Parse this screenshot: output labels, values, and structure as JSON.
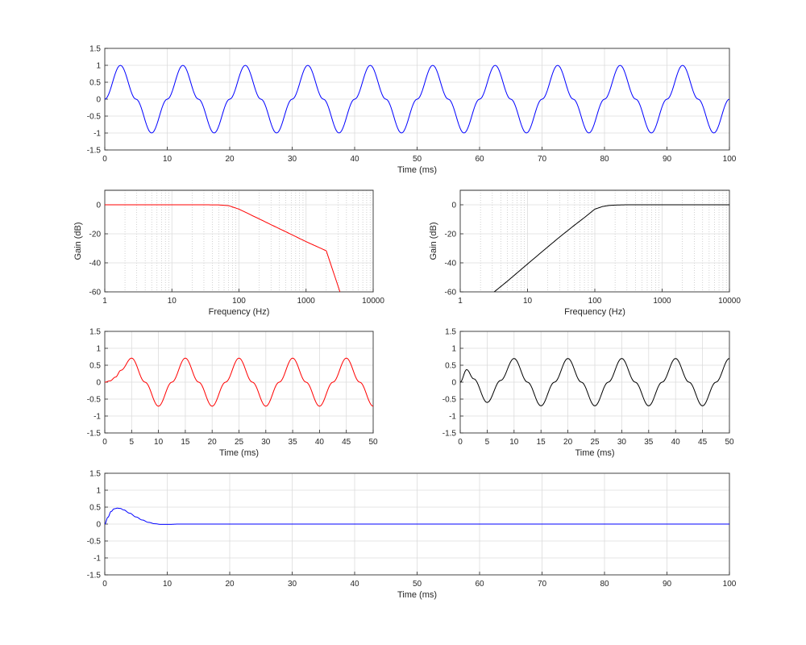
{
  "chart_data": [
    {
      "id": "input-signal",
      "type": "line",
      "xscale": "linear",
      "xlabel": "Time (ms)",
      "ylabel": "",
      "xlim": [
        0,
        100
      ],
      "ylim": [
        -1.5,
        1.5
      ],
      "xticks": [
        0,
        10,
        20,
        30,
        40,
        50,
        60,
        70,
        80,
        90,
        100
      ],
      "yticks": [
        -1.5,
        -1,
        -0.5,
        0,
        0.5,
        1,
        1.5
      ],
      "grid": true,
      "series": [
        {
          "color": "#0000ff",
          "x": [
            0,
            2.5,
            5,
            7.5,
            10,
            12.5,
            15,
            17.5,
            20,
            22.5,
            25,
            27.5,
            30,
            32.5,
            35,
            37.5,
            40,
            42.5,
            45,
            47.5,
            50,
            52.5,
            55,
            57.5,
            60,
            62.5,
            65,
            67.5,
            70,
            72.5,
            75,
            77.5,
            80,
            82.5,
            85,
            87.5,
            90,
            92.5,
            95,
            97.5,
            100
          ],
          "y": [
            0,
            1,
            0,
            -1,
            0,
            1,
            0,
            -1,
            0,
            1,
            0,
            -1,
            0,
            1,
            0,
            -1,
            0,
            1,
            0,
            -1,
            0,
            1,
            0,
            -1,
            0,
            1,
            0,
            -1,
            0,
            1,
            0,
            -1,
            0,
            1,
            0,
            -1,
            0,
            1,
            0,
            -1,
            0
          ]
        }
      ]
    },
    {
      "id": "lowpass-response",
      "type": "line",
      "xscale": "log",
      "xlabel": "Frequency (Hz)",
      "ylabel": "Gain (dB)",
      "xlim": [
        1,
        10000
      ],
      "ylim": [
        -60,
        10
      ],
      "xticks": [
        1,
        10,
        100,
        1000,
        10000
      ],
      "yticks": [
        -60,
        -40,
        -20,
        0
      ],
      "grid": true,
      "series": [
        {
          "color": "#ff0000",
          "x": [
            1,
            10,
            30,
            50,
            70,
            100,
            130,
            160,
            200,
            300,
            500,
            1000,
            2000,
            3200
          ],
          "y": [
            0,
            0,
            0,
            -0.1,
            -0.6,
            -3,
            -5.5,
            -7.6,
            -9.7,
            -13.7,
            -18.6,
            -25.4,
            -31.7,
            -60
          ]
        }
      ]
    },
    {
      "id": "highpass-response",
      "type": "line",
      "xscale": "log",
      "xlabel": "Frequency (Hz)",
      "ylabel": "Gain (dB)",
      "xlim": [
        1,
        10000
      ],
      "ylim": [
        -60,
        10
      ],
      "xticks": [
        1,
        10,
        100,
        1000,
        10000
      ],
      "yticks": [
        -60,
        -40,
        -20,
        0
      ],
      "grid": true,
      "series": [
        {
          "color": "#000000",
          "x": [
            3.2,
            5,
            10,
            20,
            30,
            50,
            70,
            100,
            130,
            160,
            200,
            300,
            1000,
            10000
          ],
          "y": [
            -60,
            -52.7,
            -40.8,
            -29,
            -22.2,
            -14,
            -8.8,
            -3,
            -1.2,
            -0.5,
            -0.2,
            0,
            0,
            0
          ]
        }
      ]
    },
    {
      "id": "lowpass-output",
      "type": "line",
      "xscale": "linear",
      "xlabel": "Time (ms)",
      "ylabel": "",
      "xlim": [
        0,
        50
      ],
      "ylim": [
        -1.5,
        1.5
      ],
      "xticks": [
        0,
        5,
        10,
        15,
        20,
        25,
        30,
        35,
        40,
        45,
        50
      ],
      "yticks": [
        -1.5,
        -1,
        -0.5,
        0,
        0.5,
        1,
        1.5
      ],
      "grid": true,
      "series": [
        {
          "color": "#ff0000",
          "x": [
            0,
            1,
            2,
            3,
            5,
            7.5,
            10,
            12.5,
            15,
            17.5,
            20,
            22.5,
            25,
            27.5,
            30,
            32.5,
            35,
            37.5,
            40,
            42.5,
            45,
            47.5,
            50
          ],
          "y": [
            0,
            0.04,
            0.15,
            0.35,
            0.71,
            0,
            -0.71,
            0,
            0.71,
            0,
            -0.71,
            0,
            0.71,
            0,
            -0.71,
            0,
            0.71,
            0,
            -0.71,
            0,
            0.71,
            0,
            -0.71
          ]
        }
      ]
    },
    {
      "id": "highpass-output",
      "type": "line",
      "xscale": "linear",
      "xlabel": "Time (ms)",
      "ylabel": "",
      "xlim": [
        0,
        50
      ],
      "ylim": [
        -1.5,
        1.5
      ],
      "xticks": [
        0,
        5,
        10,
        15,
        20,
        25,
        30,
        35,
        40,
        45,
        50
      ],
      "yticks": [
        -1.5,
        -1,
        -0.5,
        0,
        0.5,
        1,
        1.5
      ],
      "grid": true,
      "series": [
        {
          "color": "#000000",
          "x": [
            0,
            1.2,
            2.5,
            5,
            7.5,
            10,
            12.5,
            15,
            17.5,
            20,
            22.5,
            25,
            27.5,
            30,
            32.5,
            35,
            37.5,
            40,
            42.5,
            45,
            47.5,
            50
          ],
          "y": [
            0,
            0.37,
            0.1,
            -0.6,
            0.05,
            0.7,
            0,
            -0.7,
            0,
            0.7,
            0,
            -0.7,
            0,
            0.7,
            0,
            -0.7,
            0,
            0.7,
            0,
            -0.7,
            0,
            0.7
          ]
        }
      ]
    },
    {
      "id": "transient-difference",
      "type": "line",
      "xscale": "linear",
      "xlabel": "Time (ms)",
      "ylabel": "",
      "xlim": [
        0,
        100
      ],
      "ylim": [
        -1.5,
        1.5
      ],
      "xticks": [
        0,
        10,
        20,
        30,
        40,
        50,
        60,
        70,
        80,
        90,
        100
      ],
      "yticks": [
        -1.5,
        -1,
        -0.5,
        0,
        0.5,
        1,
        1.5
      ],
      "grid": true,
      "series": [
        {
          "color": "#0000ff",
          "x": [
            0,
            0.5,
            1,
            1.5,
            2,
            2.5,
            3,
            4,
            5,
            6,
            7,
            8,
            9,
            10,
            12,
            15,
            100
          ],
          "y": [
            0,
            0.2,
            0.37,
            0.45,
            0.47,
            0.46,
            0.42,
            0.32,
            0.21,
            0.12,
            0.05,
            0.01,
            -0.01,
            -0.01,
            0,
            0,
            0
          ]
        }
      ]
    }
  ]
}
